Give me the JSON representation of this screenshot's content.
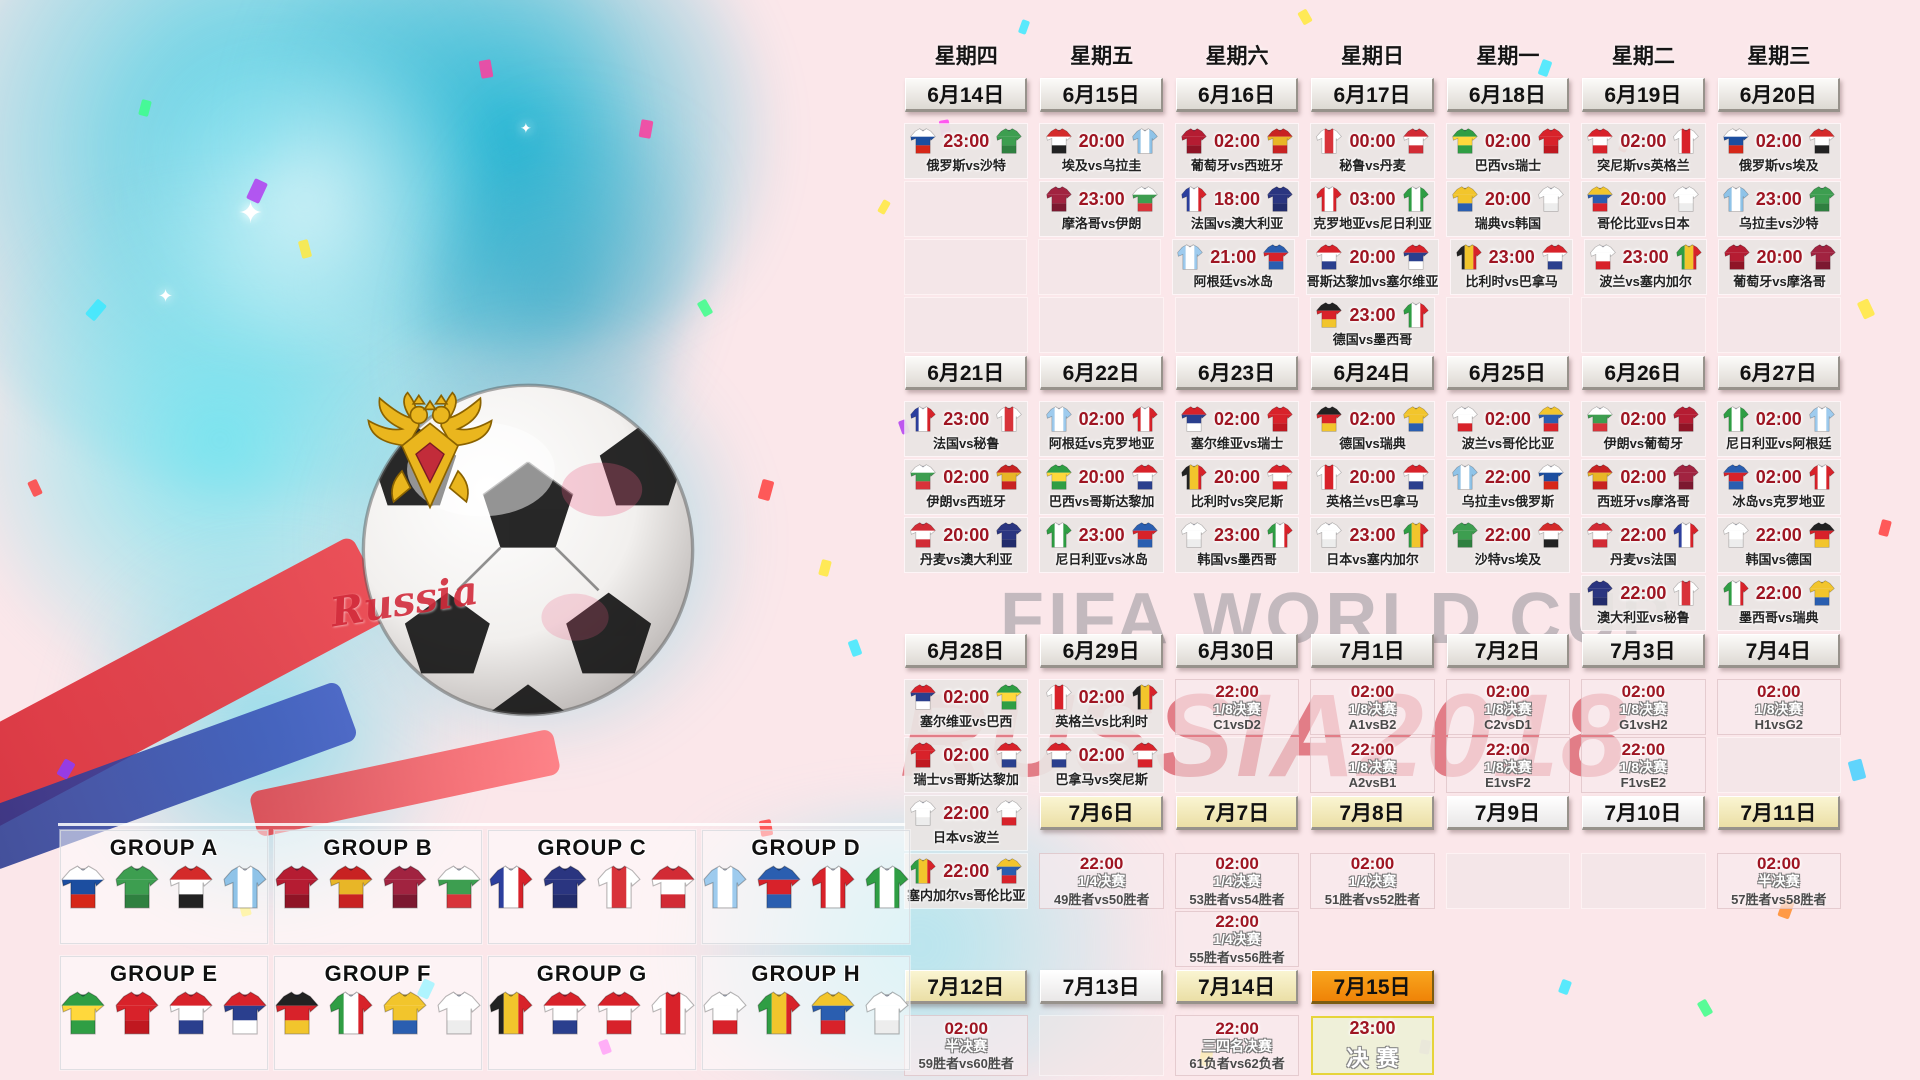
{
  "watermarks": {
    "fifa": "FIFA WORLD CUP",
    "russia": "RUSSIA2018",
    "ball_script": "Russia"
  },
  "colors": {
    "background_pink": "#fbe7ea",
    "time_red": "#9e1522",
    "date_orange": "#f59d1e",
    "splash_teal": "#4ed4e6",
    "watermark_red": "#cd2634"
  },
  "groups": [
    {
      "name": "GROUP A",
      "teams": [
        "俄罗斯",
        "沙特",
        "埃及",
        "乌拉圭"
      ]
    },
    {
      "name": "GROUP B",
      "teams": [
        "葡萄牙",
        "西班牙",
        "摩洛哥",
        "伊朗"
      ]
    },
    {
      "name": "GROUP C",
      "teams": [
        "法国",
        "澳大利亚",
        "秘鲁",
        "丹麦"
      ]
    },
    {
      "name": "GROUP D",
      "teams": [
        "阿根廷",
        "冰岛",
        "克罗地亚",
        "尼日利亚"
      ]
    },
    {
      "name": "GROUP E",
      "teams": [
        "巴西",
        "瑞士",
        "哥斯达黎加",
        "塞尔维亚"
      ]
    },
    {
      "name": "GROUP F",
      "teams": [
        "德国",
        "墨西哥",
        "瑞典",
        "韩国"
      ]
    },
    {
      "name": "GROUP G",
      "teams": [
        "比利时",
        "巴拿马",
        "突尼斯",
        "英格兰"
      ]
    },
    {
      "name": "GROUP H",
      "teams": [
        "波兰",
        "塞内加尔",
        "哥伦比亚",
        "日本"
      ]
    }
  ],
  "teams": {
    "俄罗斯": {
      "c": [
        "#ffffff",
        "#1c4ea0",
        "#d62718"
      ],
      "d": "h"
    },
    "沙特": {
      "c": [
        "#3d9e50",
        "#3d9e50",
        "#2f8040"
      ],
      "d": "h"
    },
    "埃及": {
      "c": [
        "#d42a2a",
        "#ffffff",
        "#222222"
      ],
      "d": "h"
    },
    "乌拉圭": {
      "c": [
        "#8fc3e8",
        "#ffffff",
        "#8fc3e8"
      ],
      "d": "v"
    },
    "葡萄牙": {
      "c": [
        "#b51c32",
        "#b51c32",
        "#8f1426"
      ],
      "d": "h"
    },
    "西班牙": {
      "c": [
        "#c82222",
        "#e8b627",
        "#c82222"
      ],
      "d": "h"
    },
    "秘鲁": {
      "c": [
        "#ffffff",
        "#d8333a",
        "#ffffff"
      ],
      "d": "v"
    },
    "丹麦": {
      "c": [
        "#d22b35",
        "#ffffff",
        "#d22b35"
      ],
      "d": "h"
    },
    "巴西": {
      "c": [
        "#2f9e44",
        "#ffd83c",
        "#2f9e44"
      ],
      "d": "h"
    },
    "瑞士": {
      "c": [
        "#d8222a",
        "#d8222a",
        "#c01820"
      ],
      "d": "h"
    },
    "突尼斯": {
      "c": [
        "#d8222a",
        "#ffffff",
        "#d8222a"
      ],
      "d": "h"
    },
    "英格兰": {
      "c": [
        "#ffffff",
        "#d8222a",
        "#ffffff"
      ],
      "d": "v"
    },
    "摩洛哥": {
      "c": [
        "#a12340",
        "#a12340",
        "#7c1830"
      ],
      "d": "h"
    },
    "伊朗": {
      "c": [
        "#ffffff",
        "#3d9e50",
        "#d8333a"
      ],
      "d": "h"
    },
    "法国": {
      "c": [
        "#2c3f9e",
        "#ffffff",
        "#d8222a"
      ],
      "d": "v"
    },
    "澳大利亚": {
      "c": [
        "#2a3580",
        "#2a3580",
        "#222c6c"
      ],
      "d": "h"
    },
    "克罗地亚": {
      "c": [
        "#d8222a",
        "#ffffff",
        "#d8222a"
      ],
      "d": "v"
    },
    "尼日利亚": {
      "c": [
        "#2f9e44",
        "#ffffff",
        "#2f9e44"
      ],
      "d": "v"
    },
    "瑞典": {
      "c": [
        "#f2c52c",
        "#f2c52c",
        "#2a5eb0"
      ],
      "d": "h"
    },
    "韩国": {
      "c": [
        "#ffffff",
        "#ffffff",
        "#ededed"
      ],
      "d": "h"
    },
    "哥伦比亚": {
      "c": [
        "#f2c52c",
        "#2a5eb0",
        "#d8222a"
      ],
      "d": "h"
    },
    "日本": {
      "c": [
        "#ffffff",
        "#ffffff",
        "#ededed"
      ],
      "d": "h"
    },
    "阿根廷": {
      "c": [
        "#9ecbee",
        "#ffffff",
        "#9ecbee"
      ],
      "d": "v"
    },
    "冰岛": {
      "c": [
        "#2a5eb0",
        "#d8222a",
        "#2a5eb0"
      ],
      "d": "h"
    },
    "哥斯达黎加": {
      "c": [
        "#d8222a",
        "#ffffff",
        "#2a3f8e"
      ],
      "d": "h"
    },
    "塞尔维亚": {
      "c": [
        "#d8222a",
        "#2a3f8e",
        "#ffffff"
      ],
      "d": "h"
    },
    "比利时": {
      "c": [
        "#222222",
        "#f2c52c",
        "#d8222a"
      ],
      "d": "v"
    },
    "巴拿马": {
      "c": [
        "#d8222a",
        "#ffffff",
        "#2a3f8e"
      ],
      "d": "h"
    },
    "波兰": {
      "c": [
        "#ffffff",
        "#ffffff",
        "#d8222a"
      ],
      "d": "h"
    },
    "塞内加尔": {
      "c": [
        "#2f9e44",
        "#f2c52c",
        "#d8222a"
      ],
      "d": "v"
    },
    "德国": {
      "c": [
        "#222222",
        "#d8222a",
        "#f2c52c"
      ],
      "d": "h"
    },
    "墨西哥": {
      "c": [
        "#2f9e44",
        "#ffffff",
        "#d8222a"
      ],
      "d": "v"
    }
  },
  "calendar": {
    "weekdays": [
      "星期四",
      "星期五",
      "星期六",
      "星期日",
      "星期一",
      "星期二",
      "星期三"
    ],
    "rows": [
      {
        "t": "d",
        "cells": [
          {
            "k": "date",
            "l": "6月14日",
            "s": "gray"
          },
          {
            "k": "date",
            "l": "6月15日",
            "s": "gray"
          },
          {
            "k": "date",
            "l": "6月16日",
            "s": "gray"
          },
          {
            "k": "date",
            "l": "6月17日",
            "s": "gray"
          },
          {
            "k": "date",
            "l": "6月18日",
            "s": "gray"
          },
          {
            "k": "date",
            "l": "6月19日",
            "s": "gray"
          },
          {
            "k": "date",
            "l": "6月20日",
            "s": "gray"
          }
        ]
      },
      {
        "t": "m",
        "cells": [
          {
            "k": "match",
            "t": "23:00",
            "h": "俄罗斯",
            "a": "沙特"
          },
          {
            "k": "match",
            "t": "20:00",
            "h": "埃及",
            "a": "乌拉圭"
          },
          {
            "k": "match",
            "t": "02:00",
            "h": "葡萄牙",
            "a": "西班牙"
          },
          {
            "k": "match",
            "t": "00:00",
            "h": "秘鲁",
            "a": "丹麦"
          },
          {
            "k": "match",
            "t": "02:00",
            "h": "巴西",
            "a": "瑞士"
          },
          {
            "k": "match",
            "t": "02:00",
            "h": "突尼斯",
            "a": "英格兰"
          },
          {
            "k": "match",
            "t": "02:00",
            "h": "俄罗斯",
            "a": "埃及"
          }
        ]
      },
      {
        "t": "m",
        "cells": [
          {
            "k": "empty"
          },
          {
            "k": "match",
            "t": "23:00",
            "h": "摩洛哥",
            "a": "伊朗"
          },
          {
            "k": "match",
            "t": "18:00",
            "h": "法国",
            "a": "澳大利亚"
          },
          {
            "k": "match",
            "t": "03:00",
            "h": "克罗地亚",
            "a": "尼日利亚"
          },
          {
            "k": "match",
            "t": "20:00",
            "h": "瑞典",
            "a": "韩国"
          },
          {
            "k": "match",
            "t": "20:00",
            "h": "哥伦比亚",
            "a": "日本"
          },
          {
            "k": "match",
            "t": "23:00",
            "h": "乌拉圭",
            "a": "沙特"
          }
        ]
      },
      {
        "t": "m",
        "cells": [
          {
            "k": "empty"
          },
          {
            "k": "empty"
          },
          {
            "k": "match",
            "t": "21:00",
            "h": "阿根廷",
            "a": "冰岛"
          },
          {
            "k": "match",
            "t": "20:00",
            "h": "哥斯达黎加",
            "a": "塞尔维亚"
          },
          {
            "k": "match",
            "t": "23:00",
            "h": "比利时",
            "a": "巴拿马"
          },
          {
            "k": "match",
            "t": "23:00",
            "h": "波兰",
            "a": "塞内加尔"
          },
          {
            "k": "match",
            "t": "20:00",
            "h": "葡萄牙",
            "a": "摩洛哥"
          }
        ]
      },
      {
        "t": "m",
        "cells": [
          {
            "k": "empty"
          },
          {
            "k": "empty"
          },
          {
            "k": "empty"
          },
          {
            "k": "match",
            "t": "23:00",
            "h": "德国",
            "a": "墨西哥"
          },
          {
            "k": "empty"
          },
          {
            "k": "empty"
          },
          {
            "k": "empty"
          }
        ]
      },
      {
        "t": "d",
        "cells": [
          {
            "k": "date",
            "l": "6月21日",
            "s": "gray"
          },
          {
            "k": "date",
            "l": "6月22日",
            "s": "gray"
          },
          {
            "k": "date",
            "l": "6月23日",
            "s": "gray"
          },
          {
            "k": "date",
            "l": "6月24日",
            "s": "gray"
          },
          {
            "k": "date",
            "l": "6月25日",
            "s": "gray"
          },
          {
            "k": "date",
            "l": "6月26日",
            "s": "gray"
          },
          {
            "k": "date",
            "l": "6月27日",
            "s": "gray"
          }
        ]
      },
      {
        "t": "m",
        "cells": [
          {
            "k": "match",
            "t": "23:00",
            "h": "法国",
            "a": "秘鲁"
          },
          {
            "k": "match",
            "t": "02:00",
            "h": "阿根廷",
            "a": "克罗地亚"
          },
          {
            "k": "match",
            "t": "02:00",
            "h": "塞尔维亚",
            "a": "瑞士"
          },
          {
            "k": "match",
            "t": "02:00",
            "h": "德国",
            "a": "瑞典"
          },
          {
            "k": "match",
            "t": "02:00",
            "h": "波兰",
            "a": "哥伦比亚"
          },
          {
            "k": "match",
            "t": "02:00",
            "h": "伊朗",
            "a": "葡萄牙"
          },
          {
            "k": "match",
            "t": "02:00",
            "h": "尼日利亚",
            "a": "阿根廷"
          }
        ]
      },
      {
        "t": "m",
        "cells": [
          {
            "k": "match",
            "t": "02:00",
            "h": "伊朗",
            "a": "西班牙"
          },
          {
            "k": "match",
            "t": "20:00",
            "h": "巴西",
            "a": "哥斯达黎加"
          },
          {
            "k": "match",
            "t": "20:00",
            "h": "比利时",
            "a": "突尼斯"
          },
          {
            "k": "match",
            "t": "20:00",
            "h": "英格兰",
            "a": "巴拿马"
          },
          {
            "k": "match",
            "t": "22:00",
            "h": "乌拉圭",
            "a": "俄罗斯"
          },
          {
            "k": "match",
            "t": "02:00",
            "h": "西班牙",
            "a": "摩洛哥"
          },
          {
            "k": "match",
            "t": "02:00",
            "h": "冰岛",
            "a": "克罗地亚"
          }
        ]
      },
      {
        "t": "m",
        "cells": [
          {
            "k": "match",
            "t": "20:00",
            "h": "丹麦",
            "a": "澳大利亚"
          },
          {
            "k": "match",
            "t": "23:00",
            "h": "尼日利亚",
            "a": "冰岛"
          },
          {
            "k": "match",
            "t": "23:00",
            "h": "韩国",
            "a": "墨西哥"
          },
          {
            "k": "match",
            "t": "23:00",
            "h": "日本",
            "a": "塞内加尔"
          },
          {
            "k": "match",
            "t": "22:00",
            "h": "沙特",
            "a": "埃及"
          },
          {
            "k": "match",
            "t": "22:00",
            "h": "丹麦",
            "a": "法国"
          },
          {
            "k": "match",
            "t": "22:00",
            "h": "韩国",
            "a": "德国"
          }
        ]
      },
      {
        "t": "m",
        "cells": [
          {
            "k": "blank"
          },
          {
            "k": "blank"
          },
          {
            "k": "blank"
          },
          {
            "k": "blank"
          },
          {
            "k": "blank"
          },
          {
            "k": "match",
            "t": "22:00",
            "h": "澳大利亚",
            "a": "秘鲁"
          },
          {
            "k": "match",
            "t": "22:00",
            "h": "墨西哥",
            "a": "瑞典"
          }
        ]
      },
      {
        "t": "d",
        "cells": [
          {
            "k": "date",
            "l": "6月28日",
            "s": "gray"
          },
          {
            "k": "date",
            "l": "6月29日",
            "s": "gray"
          },
          {
            "k": "date",
            "l": "6月30日",
            "s": "gray"
          },
          {
            "k": "date",
            "l": "7月1日",
            "s": "gray"
          },
          {
            "k": "date",
            "l": "7月2日",
            "s": "gray"
          },
          {
            "k": "date",
            "l": "7月3日",
            "s": "gray"
          },
          {
            "k": "date",
            "l": "7月4日",
            "s": "gray"
          }
        ]
      },
      {
        "t": "m",
        "cells": [
          {
            "k": "match",
            "t": "02:00",
            "h": "塞尔维亚",
            "a": "巴西"
          },
          {
            "k": "match",
            "t": "02:00",
            "h": "英格兰",
            "a": "比利时"
          },
          {
            "k": "ko",
            "t": "22:00",
            "g": "1/8决赛",
            "m": "C1vsD2"
          },
          {
            "k": "ko",
            "t": "02:00",
            "g": "1/8决赛",
            "m": "A1vsB2"
          },
          {
            "k": "ko",
            "t": "02:00",
            "g": "1/8决赛",
            "m": "C2vsD1"
          },
          {
            "k": "ko",
            "t": "02:00",
            "g": "1/8决赛",
            "m": "G1vsH2"
          },
          {
            "k": "ko",
            "t": "02:00",
            "g": "1/8决赛",
            "m": "H1vsG2"
          }
        ]
      },
      {
        "t": "m",
        "cells": [
          {
            "k": "match",
            "t": "02:00",
            "h": "瑞士",
            "a": "哥斯达黎加"
          },
          {
            "k": "match",
            "t": "02:00",
            "h": "巴拿马",
            "a": "突尼斯"
          },
          {
            "k": "empty"
          },
          {
            "k": "ko",
            "t": "22:00",
            "g": "1/8决赛",
            "m": "A2vsB1"
          },
          {
            "k": "ko",
            "t": "22:00",
            "g": "1/8决赛",
            "m": "E1vsF2"
          },
          {
            "k": "ko",
            "t": "22:00",
            "g": "1/8决赛",
            "m": "F1vsE2"
          },
          {
            "k": "empty"
          }
        ]
      },
      {
        "t": "m",
        "cells": [
          {
            "k": "match",
            "t": "22:00",
            "h": "日本",
            "a": "波兰"
          },
          {
            "k": "date",
            "l": "7月6日",
            "s": "cream"
          },
          {
            "k": "date",
            "l": "7月7日",
            "s": "cream"
          },
          {
            "k": "date",
            "l": "7月8日",
            "s": "cream"
          },
          {
            "k": "date",
            "l": "7月9日",
            "s": "white"
          },
          {
            "k": "date",
            "l": "7月10日",
            "s": "white"
          },
          {
            "k": "date",
            "l": "7月11日",
            "s": "cream"
          }
        ]
      },
      {
        "t": "m",
        "cells": [
          {
            "k": "match",
            "t": "22:00",
            "h": "塞内加尔",
            "a": "哥伦比亚"
          },
          {
            "k": "ko",
            "t": "22:00",
            "g": "1/4决赛",
            "m": "49胜者vs50胜者"
          },
          {
            "k": "ko",
            "t": "02:00",
            "g": "1/4决赛",
            "m": "53胜者vs54胜者"
          },
          {
            "k": "ko",
            "t": "02:00",
            "g": "1/4决赛",
            "m": "51胜者vs52胜者"
          },
          {
            "k": "empty"
          },
          {
            "k": "empty"
          },
          {
            "k": "ko",
            "t": "02:00",
            "g": "半决赛",
            "m": "57胜者vs58胜者"
          }
        ]
      },
      {
        "t": "m",
        "cells": [
          {
            "k": "blank"
          },
          {
            "k": "blank"
          },
          {
            "k": "ko",
            "t": "22:00",
            "g": "1/4决赛",
            "m": "55胜者vs56胜者"
          },
          {
            "k": "blank"
          },
          {
            "k": "blank"
          },
          {
            "k": "blank"
          },
          {
            "k": "blank"
          }
        ]
      },
      {
        "t": "d",
        "cells": [
          {
            "k": "date",
            "l": "7月12日",
            "s": "cream"
          },
          {
            "k": "date",
            "l": "7月13日",
            "s": "white"
          },
          {
            "k": "date",
            "l": "7月14日",
            "s": "cream"
          },
          {
            "k": "date",
            "l": "7月15日",
            "s": "orange"
          },
          {
            "k": "blank"
          },
          {
            "k": "blank"
          },
          {
            "k": "blank"
          }
        ]
      },
      {
        "t": "m",
        "cells": [
          {
            "k": "ko",
            "t": "02:00",
            "g": "半决赛",
            "m": "59胜者vs60胜者"
          },
          {
            "k": "empty"
          },
          {
            "k": "ko",
            "t": "22:00",
            "g": "三四名决赛",
            "m": "61负者vs62负者"
          },
          {
            "k": "final",
            "t": "23:00",
            "g": "决赛"
          },
          {
            "k": "blank"
          },
          {
            "k": "blank"
          },
          {
            "k": "blank"
          }
        ]
      }
    ]
  }
}
